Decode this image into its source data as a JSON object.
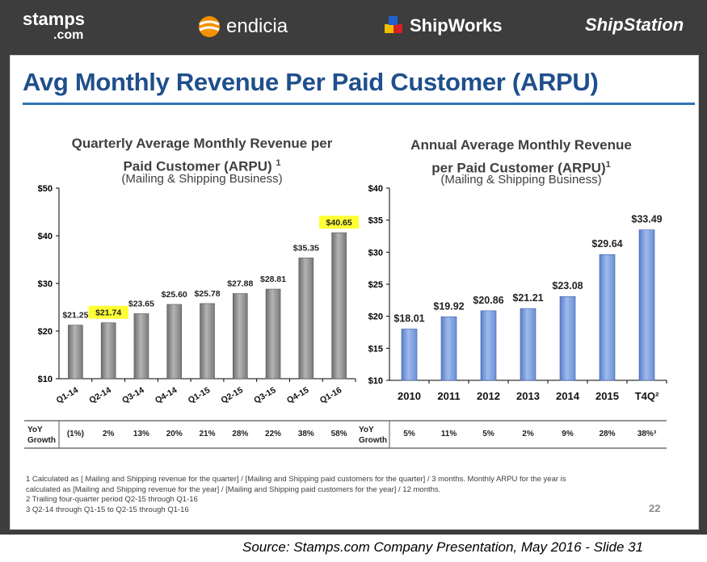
{
  "logos": {
    "stamps_main": "stamps",
    "stamps_sub": ".com",
    "endicia": "endicia",
    "shipworks": "ShipWorks",
    "shipstation": "ShipStation"
  },
  "page_title": "Avg Monthly Revenue Per Paid Customer (ARPU)",
  "colors": {
    "title": "#1f4f8c",
    "quarterly_bar": "#9a9a9a",
    "annual_bar": "#7da0e0",
    "highlight": "#ffff33"
  },
  "chart_data": [
    {
      "type": "bar",
      "title_line1": "Quarterly Average Monthly Revenue per",
      "title_line2": "Paid Customer (ARPU)",
      "title_footnote": "1",
      "subtitle": "(Mailing & Shipping Business)",
      "categories": [
        "Q1-14",
        "Q2-14",
        "Q3-14",
        "Q4-14",
        "Q1-15",
        "Q2-15",
        "Q3-15",
        "Q4-15",
        "Q1-16"
      ],
      "values": [
        21.25,
        21.74,
        23.65,
        25.6,
        25.78,
        27.88,
        28.81,
        35.35,
        40.65
      ],
      "data_labels": [
        "$21.25",
        "$21.74",
        "$23.65",
        "$25.60",
        "$25.78",
        "$27.88",
        "$28.81",
        "$35.35",
        "$40.65"
      ],
      "highlighted": [
        1,
        8
      ],
      "ylim": [
        10,
        50
      ],
      "yticks": [
        10,
        20,
        30,
        40,
        50
      ],
      "ytick_labels": [
        "$10",
        "$20",
        "$30",
        "$40",
        "$50"
      ],
      "xlabel": "",
      "ylabel": "",
      "yoy_label_line1": "YoY",
      "yoy_label_line2": "Growth",
      "yoy_growth": [
        "(1%)",
        "2%",
        "13%",
        "20%",
        "21%",
        "28%",
        "22%",
        "38%",
        "58%"
      ]
    },
    {
      "type": "bar",
      "title_line1": "Annual Average Monthly Revenue",
      "title_line2": "per Paid Customer (ARPU)",
      "title_footnote": "1",
      "subtitle": "(Mailing & Shipping Business)",
      "categories": [
        "2010",
        "2011",
        "2012",
        "2013",
        "2014",
        "2015",
        "T4Q²"
      ],
      "values": [
        18.01,
        19.92,
        20.86,
        21.21,
        23.08,
        29.64,
        33.49
      ],
      "data_labels": [
        "$18.01",
        "$19.92",
        "$20.86",
        "$21.21",
        "$23.08",
        "$29.64",
        "$33.49"
      ],
      "ylim": [
        10,
        40
      ],
      "yticks": [
        10,
        15,
        20,
        25,
        30,
        35,
        40
      ],
      "ytick_labels": [
        "$10",
        "$15",
        "$20",
        "$25",
        "$30",
        "$35",
        "$40"
      ],
      "xlabel": "",
      "ylabel": "",
      "yoy_label_line1": "YoY",
      "yoy_label_line2": "Growth",
      "yoy_growth": [
        "5%",
        "11%",
        "5%",
        "2%",
        "9%",
        "28%",
        "38%³"
      ]
    }
  ],
  "footnotes": {
    "f1_line1": "1  Calculated as [ Mailing and Shipping revenue for the quarter] / [Mailing and Shipping paid customers for the quarter] / 3 months. Monthly ARPU for the year is",
    "f1_line2": "    calculated as [Mailing and Shipping revenue for the year] / [Mailing and Shipping paid customers for the year] / 12 months.",
    "f2": "2  Trailing four-quarter period Q2-15 through Q1-16",
    "f3": "3  Q2-14 through Q1-15 to Q2-15 through Q1-16"
  },
  "slide_number": "22",
  "source": "Source: Stamps.com Company Presentation, May 2016 - Slide 31"
}
